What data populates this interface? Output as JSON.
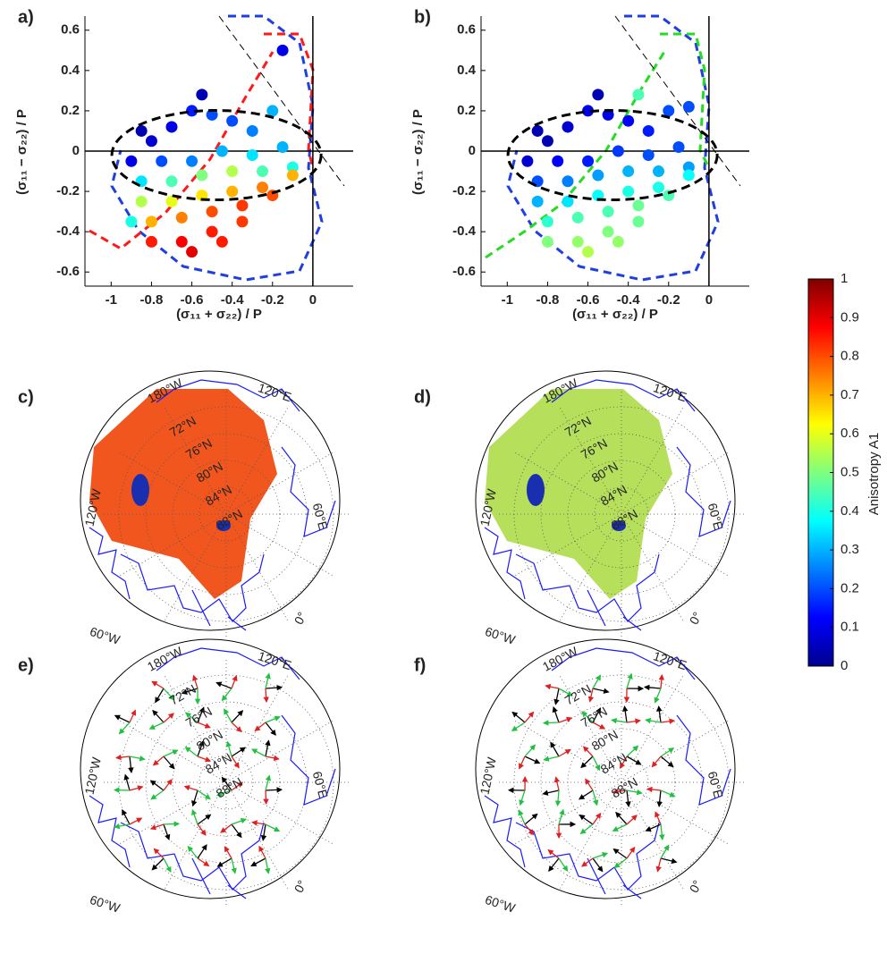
{
  "chart_data": [
    {
      "type": "scatter",
      "label": "a)",
      "xlabel": "(σ₁₁ + σ₂₂) / P",
      "ylabel": "(σ₁₁ − σ₂₂) / P",
      "xlim": [
        -1.13,
        0.2
      ],
      "ylim": [
        -0.67,
        0.67
      ],
      "xticks": [
        -1,
        -0.8,
        -0.6,
        -0.4,
        -0.2,
        0
      ],
      "yticks": [
        -0.6,
        -0.4,
        -0.2,
        0,
        0.2,
        0.4,
        0.6
      ],
      "x": [
        -0.85,
        -0.8,
        -0.7,
        -0.6,
        -0.5,
        -0.4,
        -0.3,
        -0.2,
        -0.9,
        -0.75,
        -0.6,
        -0.45,
        -0.3,
        -0.15,
        -0.85,
        -0.7,
        -0.55,
        -0.4,
        -0.25,
        -0.1,
        -0.85,
        -0.7,
        -0.55,
        -0.4,
        -0.25,
        -0.1,
        -0.8,
        -0.65,
        -0.5,
        -0.35,
        -0.2,
        -0.8,
        -0.65,
        -0.5,
        -0.35,
        -0.6,
        -0.45,
        -0.15,
        -0.55,
        -0.9
      ],
      "y": [
        0.1,
        0.05,
        0.12,
        0.2,
        0.18,
        0.15,
        0.1,
        0.2,
        -0.05,
        -0.05,
        -0.05,
        0,
        -0.02,
        0.02,
        -0.15,
        -0.15,
        -0.12,
        -0.1,
        -0.1,
        -0.08,
        -0.25,
        -0.25,
        -0.22,
        -0.2,
        -0.18,
        -0.12,
        -0.35,
        -0.33,
        -0.3,
        -0.27,
        -0.22,
        -0.45,
        -0.45,
        -0.4,
        -0.35,
        -0.5,
        -0.45,
        0.5,
        0.28,
        -0.35
      ],
      "anisotropy": [
        0.05,
        0.08,
        0.1,
        0.15,
        0.2,
        0.2,
        0.25,
        0.3,
        0.1,
        0.2,
        0.25,
        0.3,
        0.35,
        0.3,
        0.35,
        0.45,
        0.5,
        0.55,
        0.45,
        0.4,
        0.55,
        0.6,
        0.65,
        0.7,
        0.75,
        0.7,
        0.7,
        0.75,
        0.8,
        0.82,
        0.8,
        0.85,
        0.88,
        0.85,
        0.82,
        0.9,
        0.85,
        0.1,
        0.05,
        0.4
      ]
    },
    {
      "type": "scatter",
      "label": "b)",
      "xlabel": "(σ₁₁ + σ₂₂) / P",
      "ylabel": "(σ₁₁ − σ₂₂) / P",
      "xlim": [
        -1.13,
        0.2
      ],
      "ylim": [
        -0.67,
        0.67
      ],
      "xticks": [
        -1,
        -0.8,
        -0.6,
        -0.4,
        -0.2,
        0
      ],
      "yticks": [
        -0.6,
        -0.4,
        -0.2,
        0,
        0.2,
        0.4,
        0.6
      ],
      "x": [
        -0.85,
        -0.8,
        -0.7,
        -0.6,
        -0.5,
        -0.4,
        -0.3,
        -0.2,
        -0.9,
        -0.75,
        -0.6,
        -0.45,
        -0.3,
        -0.15,
        -0.85,
        -0.7,
        -0.55,
        -0.4,
        -0.25,
        -0.1,
        -0.85,
        -0.7,
        -0.55,
        -0.4,
        -0.25,
        -0.1,
        -0.8,
        -0.65,
        -0.5,
        -0.35,
        -0.2,
        -0.8,
        -0.65,
        -0.5,
        -0.35,
        -0.6,
        -0.45,
        -0.35,
        -0.55,
        -0.1
      ],
      "y": [
        0.1,
        0.05,
        0.12,
        0.2,
        0.18,
        0.15,
        0.1,
        0.2,
        -0.05,
        -0.05,
        -0.05,
        0,
        -0.02,
        0.02,
        -0.15,
        -0.15,
        -0.12,
        -0.1,
        -0.1,
        -0.08,
        -0.25,
        -0.25,
        -0.22,
        -0.2,
        -0.18,
        -0.12,
        -0.35,
        -0.33,
        -0.3,
        -0.27,
        -0.22,
        -0.45,
        -0.45,
        -0.4,
        -0.35,
        -0.5,
        -0.45,
        0.28,
        0.28,
        0.22
      ],
      "anisotropy": [
        0.05,
        0.05,
        0.08,
        0.1,
        0.1,
        0.12,
        0.15,
        0.2,
        0.08,
        0.12,
        0.15,
        0.18,
        0.2,
        0.2,
        0.2,
        0.25,
        0.28,
        0.3,
        0.3,
        0.28,
        0.3,
        0.35,
        0.38,
        0.4,
        0.4,
        0.38,
        0.42,
        0.45,
        0.45,
        0.48,
        0.45,
        0.5,
        0.52,
        0.5,
        0.48,
        0.55,
        0.52,
        0.45,
        0.05,
        0.2
      ]
    },
    {
      "type": "map",
      "label": "c)",
      "fill": "#f0561e",
      "lon_labels": [
        "180°W",
        "120°E",
        "60°E",
        "0°",
        "60°W",
        "120°W"
      ],
      "lat_labels": [
        "72°N",
        "76°N",
        "80°N",
        "84°N",
        "88°N"
      ]
    },
    {
      "type": "map",
      "label": "d)",
      "fill": "#b6df5c",
      "lon_labels": [
        "180°W",
        "120°E",
        "60°E",
        "0°",
        "60°W",
        "120°W"
      ],
      "lat_labels": [
        "72°N",
        "76°N",
        "80°N",
        "84°N",
        "88°N"
      ]
    },
    {
      "type": "arrows",
      "label": "e)",
      "lon_labels": [
        "180°W",
        "120°E",
        "60°E",
        "0°",
        "60°W",
        "120°W"
      ],
      "lat_labels": [
        "72°N",
        "76°N",
        "80°N",
        "84°N",
        "88°N"
      ]
    },
    {
      "type": "arrows",
      "label": "f)",
      "lon_labels": [
        "180°W",
        "120°E",
        "60°E",
        "0°",
        "60°W",
        "120°W"
      ],
      "lat_labels": [
        "72°N",
        "76°N",
        "80°N",
        "84°N",
        "88°N"
      ]
    },
    {
      "type": "colorbar",
      "label": "Anisotropy A1",
      "ylim": [
        0,
        1
      ],
      "yticks": [
        0,
        0.1,
        0.2,
        0.3,
        0.4,
        0.5,
        0.6,
        0.7,
        0.8,
        0.9,
        1
      ]
    }
  ]
}
